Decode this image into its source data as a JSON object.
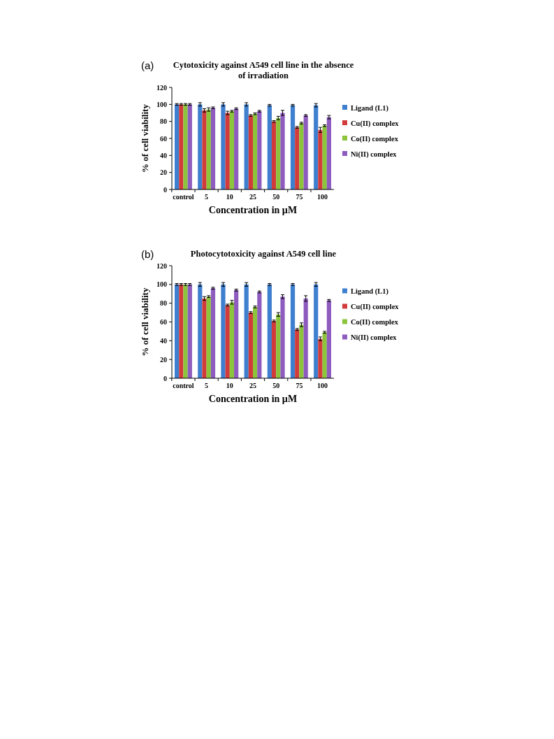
{
  "chart_data": [
    {
      "type": "bar",
      "title": "Cytotoxicity against A549 cell line in the absence of irradiation",
      "xlabel": "Concentration in µM",
      "ylabel": "% of cell viability",
      "annotations": [
        "(a)"
      ],
      "categories": [
        "control",
        "5",
        "10",
        "25",
        "50",
        "75",
        "100"
      ],
      "ylim": [
        0,
        120
      ],
      "yticks": [
        0,
        20,
        40,
        60,
        80,
        100,
        120
      ],
      "legend": "right",
      "grid": false,
      "series": [
        {
          "name": "Ligand (L1)",
          "color": "#3f7fcf",
          "values": [
            100,
            100,
            100,
            100,
            99,
            99,
            99
          ],
          "errors": [
            1,
            2,
            2,
            2,
            1,
            1,
            2
          ]
        },
        {
          "name": "Cu(II) complex",
          "color": "#d23b3b",
          "values": [
            100,
            93,
            90,
            87,
            80,
            73,
            70
          ],
          "errors": [
            1,
            2,
            2,
            1,
            1,
            1,
            3
          ]
        },
        {
          "name": "Co(II) complex",
          "color": "#8cc43c",
          "values": [
            100,
            94,
            92,
            89,
            84,
            78,
            75
          ],
          "errors": [
            1,
            2,
            1,
            1,
            2,
            1,
            1
          ]
        },
        {
          "name": "Ni(II) complex",
          "color": "#8e5cbf",
          "values": [
            100,
            96,
            95,
            92,
            90,
            87,
            85
          ],
          "errors": [
            1,
            1,
            1,
            1,
            3,
            1,
            2
          ]
        }
      ]
    },
    {
      "type": "bar",
      "title": "Photocytotoxicity against A549 cell line",
      "xlabel": "Concentration in µM",
      "ylabel": "% of cell viability",
      "annotations": [
        "(b)"
      ],
      "categories": [
        "control",
        "5",
        "10",
        "25",
        "50",
        "75",
        "100"
      ],
      "ylim": [
        0,
        120
      ],
      "yticks": [
        0,
        20,
        40,
        60,
        80,
        100,
        120
      ],
      "legend": "right",
      "grid": false,
      "series": [
        {
          "name": "Ligand (L1)",
          "color": "#3f7fcf",
          "values": [
            100,
            100,
            100,
            100,
            100,
            100,
            100
          ],
          "errors": [
            1,
            2,
            2,
            2,
            1,
            1,
            2
          ]
        },
        {
          "name": "Cu(II) complex",
          "color": "#d23b3b",
          "values": [
            100,
            85,
            78,
            70,
            61,
            52,
            42
          ],
          "errors": [
            1,
            2,
            1,
            1,
            1,
            1,
            2
          ]
        },
        {
          "name": "Co(II) complex",
          "color": "#8cc43c",
          "values": [
            100,
            87,
            81,
            76,
            68,
            57,
            49
          ],
          "errors": [
            1,
            1,
            2,
            1,
            2,
            2,
            1
          ]
        },
        {
          "name": "Ni(II) complex",
          "color": "#8e5cbf",
          "values": [
            100,
            96,
            94,
            92,
            87,
            85,
            83
          ],
          "errors": [
            1,
            1,
            1,
            1,
            2,
            3,
            1
          ]
        }
      ]
    }
  ]
}
